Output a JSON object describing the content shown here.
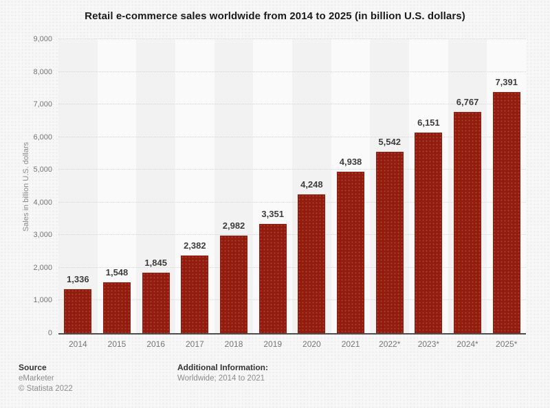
{
  "title": "Retail e-commerce sales worldwide from 2014 to 2025 (in billion U.S. dollars)",
  "chart_data": {
    "type": "bar",
    "title": "Retail e-commerce sales worldwide from 2014 to 2025 (in billion U.S. dollars)",
    "categories": [
      "2014",
      "2015",
      "2016",
      "2017",
      "2018",
      "2019",
      "2020",
      "2021",
      "2022*",
      "2023*",
      "2024*",
      "2025*"
    ],
    "values": [
      1336,
      1548,
      1845,
      2382,
      2982,
      3351,
      4248,
      4938,
      5542,
      6151,
      6767,
      7391
    ],
    "value_labels": [
      "1,336",
      "1,548",
      "1,845",
      "2,382",
      "2,982",
      "3,351",
      "4,248",
      "4,938",
      "5,542",
      "6,151",
      "6,767",
      "7,391"
    ],
    "xlabel": "",
    "ylabel": "Sales in billion U.S. dollars",
    "ylim": [
      0,
      9000
    ],
    "ytick_interval": 1000,
    "ytick_labels": [
      "0",
      "1,000",
      "2,000",
      "3,000",
      "4,000",
      "5,000",
      "6,000",
      "7,000",
      "8,000",
      "9,000"
    ],
    "grid": true,
    "legend": false,
    "bar_color": "#921c0d"
  },
  "footer": {
    "source_label": "Source",
    "source_name": "eMarketer",
    "copyright": "© Statista 2022",
    "additional_info_label": "Additional Information:",
    "additional_info_value": "Worldwide; 2014 to 2021"
  },
  "colors": {
    "bar": "#921c0d",
    "band_even": "#f2f2f2",
    "band_odd": "#fafafa",
    "gridline": "#d6d6d6",
    "axis_line": "#4d4d4d",
    "background": "#f7f7f7"
  }
}
